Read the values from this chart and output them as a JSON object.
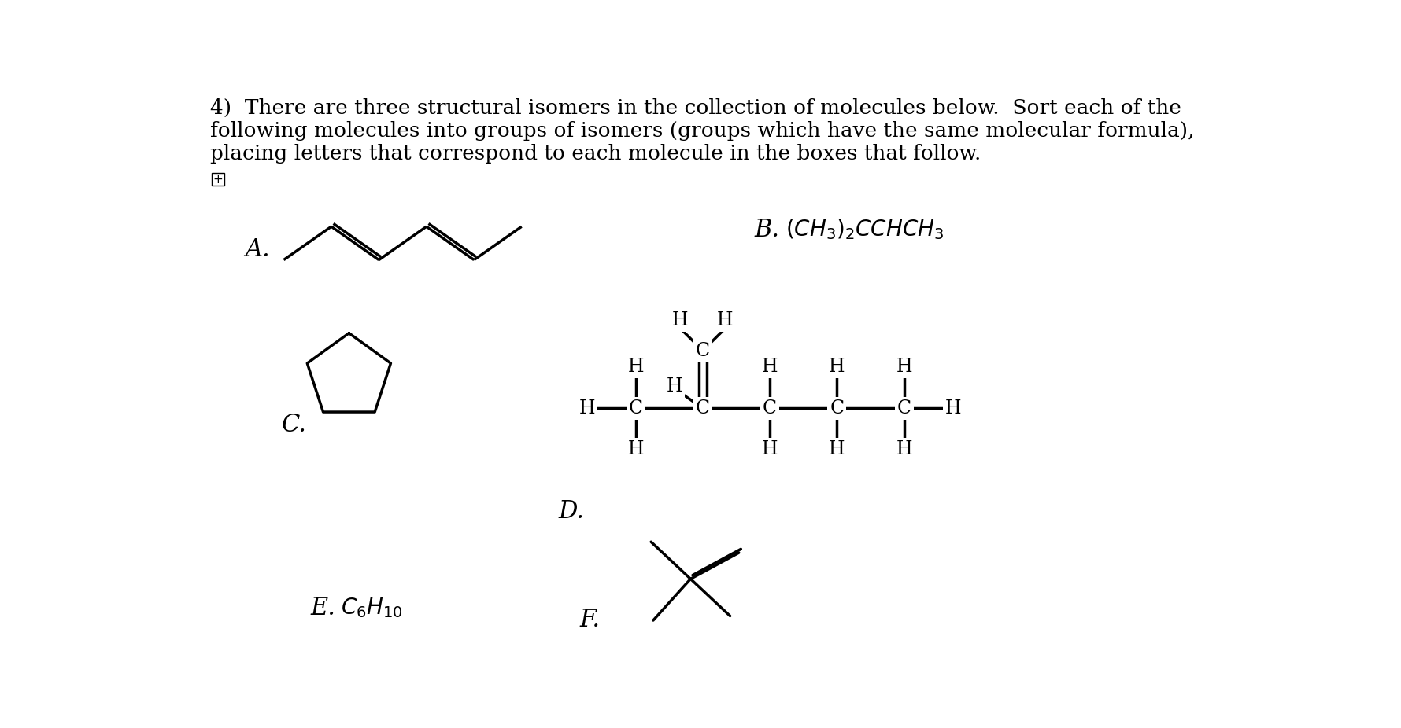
{
  "background_color": "#ffffff",
  "text_color": "#000000",
  "title_line1": "4)  There are three structural isomers in the collection of molecules below.  Sort each of the",
  "title_line2": "following molecules into groups of isomers (groups which have the same molecular formula),",
  "title_line3": "placing letters that correspond to each molecule in the boxes that follow.",
  "label_A": "A.",
  "label_B": "B.",
  "label_C": "C.",
  "label_D": "D.",
  "label_E": "E.",
  "label_F": "F.",
  "font_serif": "DejaVu Serif",
  "font_size_title": 19,
  "font_size_label": 22,
  "font_size_chem": 20,
  "font_size_atom": 17
}
